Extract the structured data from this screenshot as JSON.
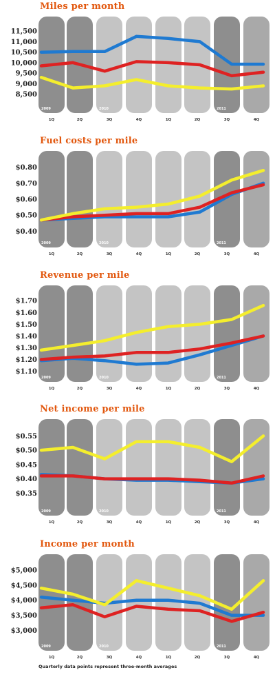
{
  "colors": {
    "blue": "#1f7ad1",
    "red": "#de2222",
    "yellow": "#f4ee2d",
    "col_dark": "#8e8e8e",
    "col_mid": "#a9a9a9",
    "col_light": "#c4c4c4",
    "title": "#e2580f"
  },
  "footnote": "Quarterly data points represent three-month averages",
  "chart_data": [
    {
      "type": "line",
      "title": "Miles per month",
      "x": [
        "1Q",
        "2Q",
        "3Q",
        "4Q",
        "1Q",
        "2Q",
        "3Q",
        "4Q"
      ],
      "year_labels": [
        "2009",
        "2010",
        "2011"
      ],
      "yticks": [
        "11,500",
        "11,000",
        "10,500",
        "10,000",
        "9,500",
        "9,000",
        "8,500"
      ],
      "ylim": [
        8000,
        11800
      ],
      "series": [
        {
          "color": "blue",
          "values": [
            10500,
            10530,
            10530,
            11250,
            11150,
            11000,
            9930,
            9930
          ]
        },
        {
          "color": "red",
          "values": [
            9850,
            10000,
            9600,
            10050,
            10000,
            9900,
            9380,
            9550
          ]
        },
        {
          "color": "yellow",
          "values": [
            9300,
            8800,
            8900,
            9200,
            8900,
            8800,
            8750,
            8900
          ]
        }
      ]
    },
    {
      "type": "line",
      "title": "Fuel costs per mile",
      "x": [
        "1Q",
        "2Q",
        "3Q",
        "4Q",
        "1Q",
        "2Q",
        "3Q",
        "4Q"
      ],
      "year_labels": [
        "2009",
        "2010",
        "2011"
      ],
      "yticks": [
        "$0.80",
        "$0.70",
        "$0.60",
        "$0.50",
        "$0.40"
      ],
      "ylim": [
        0.35,
        0.85
      ],
      "series": [
        {
          "color": "blue",
          "values": [
            0.47,
            0.48,
            0.49,
            0.49,
            0.49,
            0.52,
            0.63,
            0.7
          ]
        },
        {
          "color": "red",
          "values": [
            0.47,
            0.49,
            0.5,
            0.51,
            0.51,
            0.55,
            0.64,
            0.69
          ]
        },
        {
          "color": "yellow",
          "values": [
            0.47,
            0.51,
            0.54,
            0.55,
            0.57,
            0.62,
            0.72,
            0.78
          ]
        }
      ]
    },
    {
      "type": "line",
      "title": "Revenue per mile",
      "x": [
        "1Q",
        "2Q",
        "3Q",
        "4Q",
        "1Q",
        "2Q",
        "3Q",
        "4Q"
      ],
      "year_labels": [
        "2009",
        "2010",
        "2011"
      ],
      "yticks": [
        "$1.70",
        "$1.60",
        "$1.50",
        "$1.40",
        "$1.30",
        "$1.20",
        "$1.10"
      ],
      "ylim": [
        1.08,
        1.76
      ],
      "series": [
        {
          "color": "blue",
          "values": [
            1.19,
            1.21,
            1.19,
            1.16,
            1.17,
            1.24,
            1.32,
            1.4
          ]
        },
        {
          "color": "red",
          "values": [
            1.2,
            1.22,
            1.23,
            1.26,
            1.26,
            1.29,
            1.34,
            1.4
          ]
        },
        {
          "color": "yellow",
          "values": [
            1.28,
            1.32,
            1.36,
            1.43,
            1.48,
            1.5,
            1.54,
            1.66
          ]
        }
      ]
    },
    {
      "type": "line",
      "title": "Net income per mile",
      "x": [
        "1Q",
        "2Q",
        "3Q",
        "4Q",
        "1Q",
        "2Q",
        "3Q",
        "4Q"
      ],
      "year_labels": [
        "2009",
        "2010",
        "2011"
      ],
      "yticks": [
        "$0.55",
        "$0.50",
        "$0.45",
        "$0.40",
        "$0.35"
      ],
      "ylim": [
        0.3,
        0.58
      ],
      "series": [
        {
          "color": "blue",
          "values": [
            0.415,
            0.41,
            0.4,
            0.395,
            0.395,
            0.39,
            0.385,
            0.4
          ]
        },
        {
          "color": "red",
          "values": [
            0.41,
            0.41,
            0.4,
            0.4,
            0.4,
            0.395,
            0.385,
            0.41
          ]
        },
        {
          "color": "yellow",
          "values": [
            0.5,
            0.51,
            0.47,
            0.53,
            0.53,
            0.51,
            0.46,
            0.55
          ]
        }
      ]
    },
    {
      "type": "line",
      "title": "Income per month",
      "x": [
        "1Q",
        "2Q",
        "3Q",
        "4Q",
        "1Q",
        "2Q",
        "3Q",
        "4Q"
      ],
      "year_labels": [
        "2009",
        "2010",
        "2011"
      ],
      "yticks": [
        "$5,000",
        "$4,500",
        "$4,000",
        "$3,500",
        "$3,000"
      ],
      "ylim": [
        2600,
        5250
      ],
      "series": [
        {
          "color": "blue",
          "values": [
            4100,
            4000,
            3900,
            4000,
            4000,
            3900,
            3500,
            3500
          ]
        },
        {
          "color": "red",
          "values": [
            3750,
            3850,
            3450,
            3800,
            3700,
            3650,
            3300,
            3600
          ]
        },
        {
          "color": "yellow",
          "values": [
            4400,
            4200,
            3850,
            4650,
            4400,
            4150,
            3700,
            4650
          ]
        }
      ]
    }
  ]
}
